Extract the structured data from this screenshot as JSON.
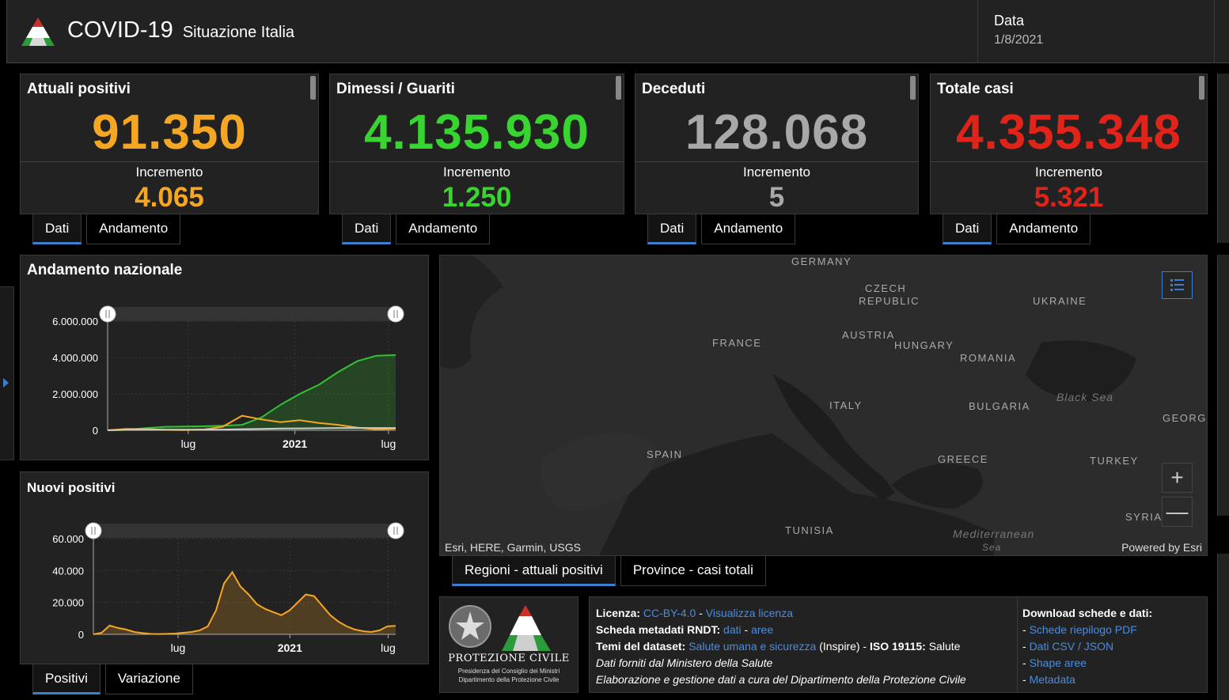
{
  "header": {
    "title": "COVID-19",
    "subtitle": "Situazione Italia",
    "date_label": "Data",
    "date_value": "1/8/2021"
  },
  "stats": [
    {
      "title": "Attuali positivi",
      "value": "91.350",
      "inc_label": "Incremento",
      "inc": "4.065",
      "color": "#f5a623"
    },
    {
      "title": "Dimessi / Guariti",
      "value": "4.135.930",
      "inc_label": "Incremento",
      "inc": "1.250",
      "color": "#38d430"
    },
    {
      "title": "Deceduti",
      "value": "128.068",
      "inc_label": "Incremento",
      "inc": "5",
      "color": "#a8a8a8"
    },
    {
      "title": "Totale casi",
      "value": "4.355.348",
      "inc_label": "Incremento",
      "inc": "5.321",
      "color": "#e0241a"
    }
  ],
  "stat_tabs": {
    "dati": "Dati",
    "andamento": "Andamento"
  },
  "national_chart": {
    "title": "Andamento nazionale"
  },
  "new_chart": {
    "title": "Nuovi positivi"
  },
  "bottom_tabs": {
    "positivi": "Positivi",
    "variazione": "Variazione"
  },
  "chart_data": [
    {
      "type": "area",
      "title": "Andamento nazionale",
      "x_ticks": [
        "lug",
        "2021",
        "lug"
      ],
      "y_ticks": [
        "0",
        "2.000.000",
        "4.000.000",
        "6.000.000"
      ],
      "ylim": [
        0,
        6000000
      ],
      "series": [
        {
          "color": "#33c233",
          "values": [
            0,
            20000,
            120000,
            190000,
            205000,
            220000,
            250000,
            300000,
            700000,
            1400000,
            2000000,
            2500000,
            3200000,
            3800000,
            4100000,
            4135930
          ]
        },
        {
          "color": "#f5a623",
          "values": [
            0,
            80000,
            70000,
            20000,
            15000,
            40000,
            200000,
            800000,
            600000,
            450000,
            550000,
            400000,
            300000,
            150000,
            50000,
            91350
          ]
        },
        {
          "color": "#cccccc",
          "values": [
            0,
            25000,
            34000,
            35000,
            35500,
            36000,
            40000,
            60000,
            80000,
            95000,
            105000,
            115000,
            125000,
            127000,
            127800,
            128068
          ]
        }
      ]
    },
    {
      "type": "area",
      "title": "Nuovi positivi",
      "x_ticks": [
        "lug",
        "2021",
        "lug"
      ],
      "y_ticks": [
        "0",
        "20.000",
        "40.000",
        "60.000"
      ],
      "ylim": [
        0,
        60000
      ],
      "series": [
        {
          "color": "#f5a623",
          "values": [
            0,
            1000,
            5500,
            4000,
            3000,
            1500,
            800,
            300,
            200,
            300,
            500,
            1000,
            1500,
            2500,
            5000,
            15000,
            32000,
            39000,
            30000,
            25000,
            19000,
            16000,
            14000,
            12000,
            15000,
            20000,
            25000,
            24000,
            18000,
            12000,
            8000,
            5000,
            3000,
            2000,
            1500,
            2500,
            5000,
            5321
          ]
        }
      ]
    }
  ],
  "map": {
    "attribution": "Esri, HERE, Garmin, USGS",
    "powered": "Powered by Esri",
    "labels": {
      "germany": "GERMANY",
      "czech1": "CZECH",
      "czech2": "REPUBLIC",
      "ukraine": "UKRAINE",
      "france": "FRANCE",
      "austria": "AUSTRIA",
      "hungary": "HUNGARY",
      "romania": "ROMANIA",
      "black_sea": "Black Sea",
      "italy": "ITALY",
      "bulgaria": "BULGARIA",
      "georgia": "GEORGI",
      "spain": "SPAIN",
      "greece": "GREECE",
      "turkey": "TURKEY",
      "tunisia": "TUNISIA",
      "syria": "SYRIA",
      "mediterranean": "Mediterranean",
      "sea": "Sea"
    },
    "zoom_in": "+",
    "zoom_out": "—"
  },
  "map_tabs": {
    "regioni": "Regioni - attuali positivi",
    "province": "Province - casi totali"
  },
  "logo": {
    "name": "PROTEZIONE CIVILE",
    "sub1": "Presidenza del Consiglio dei Ministri",
    "sub2": "Dipartimento della Protezione Civile"
  },
  "info": {
    "licenza_label": "Licenza:",
    "licenza_link": "CC-BY-4.0",
    "sep1": " - ",
    "visualizza": "Visualizza licenza",
    "scheda_label": "Scheda metadati RNDT:",
    "dati": "dati",
    "sep2": " - ",
    "aree": "aree",
    "temi_label": "Temi del dataset:",
    "temi_link": "Salute umana e sicurezza",
    "inspire": " (Inspire) - ",
    "iso_label": "ISO 19115:",
    "iso_value": " Salute",
    "line4": "Dati forniti dal Ministero della Salute",
    "line5": "Elaborazione e gestione dati a cura del Dipartimento della Protezione Civile",
    "download_title": "Download schede e dati:",
    "dash": "- ",
    "downloads": [
      "Schede riepilogo PDF",
      "Dati CSV / JSON",
      "Shape aree",
      "Metadata"
    ]
  }
}
